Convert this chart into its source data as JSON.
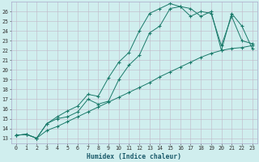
{
  "bg_color": "#d0eeee",
  "grid_color": "#c0b8c8",
  "line_color": "#1a7a6a",
  "xlabel": "Humidex (Indice chaleur)",
  "xlim": [
    -0.5,
    23.5
  ],
  "ylim": [
    12.5,
    27.0
  ],
  "xticks": [
    0,
    1,
    2,
    3,
    4,
    5,
    6,
    7,
    8,
    9,
    10,
    11,
    12,
    13,
    14,
    15,
    16,
    17,
    18,
    19,
    20,
    21,
    22,
    23
  ],
  "yticks": [
    13,
    14,
    15,
    16,
    17,
    18,
    19,
    20,
    21,
    22,
    23,
    24,
    25,
    26
  ],
  "line1": {
    "x": [
      0,
      1,
      2,
      3,
      4,
      5,
      6,
      7,
      8,
      9,
      10,
      11,
      12,
      13,
      14,
      15,
      16,
      17,
      18,
      19,
      20,
      21,
      22,
      23
    ],
    "y": [
      13.3,
      13.4,
      13.0,
      14.5,
      15.0,
      15.2,
      15.7,
      17.0,
      16.5,
      16.8,
      19.0,
      20.5,
      21.5,
      23.8,
      24.5,
      26.3,
      26.5,
      26.3,
      25.5,
      26.0,
      22.0,
      25.8,
      24.5,
      22.2
    ]
  },
  "line2": {
    "x": [
      0,
      1,
      2,
      3,
      4,
      5,
      6,
      7,
      8,
      9,
      10,
      11,
      12,
      13,
      14,
      15,
      16,
      17,
      18,
      19,
      20,
      21,
      22,
      23
    ],
    "y": [
      13.3,
      13.4,
      13.0,
      14.5,
      15.2,
      15.8,
      16.3,
      17.5,
      17.3,
      19.2,
      20.8,
      21.8,
      24.0,
      25.8,
      26.3,
      26.8,
      26.5,
      25.5,
      26.0,
      25.8,
      22.5,
      25.5,
      23.0,
      22.7
    ]
  },
  "line3": {
    "x": [
      0,
      1,
      2,
      3,
      4,
      5,
      6,
      7,
      8,
      9,
      10,
      11,
      12,
      13,
      14,
      15,
      16,
      17,
      18,
      19,
      20,
      21,
      22,
      23
    ],
    "y": [
      13.3,
      13.4,
      13.0,
      13.8,
      14.2,
      14.7,
      15.2,
      15.7,
      16.2,
      16.7,
      17.2,
      17.7,
      18.2,
      18.7,
      19.3,
      19.8,
      20.3,
      20.8,
      21.3,
      21.7,
      22.0,
      22.2,
      22.3,
      22.5
    ]
  }
}
